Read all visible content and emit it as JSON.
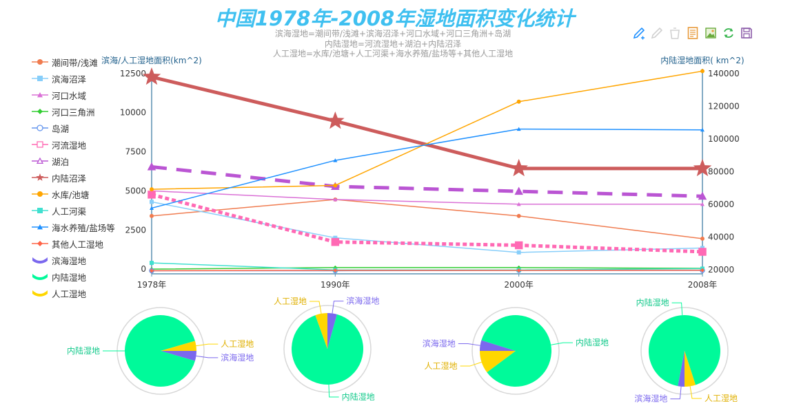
{
  "title": "中国1978年-2008年湿地面积变化统计",
  "subtitle_lines": [
    "滨海湿地=潮间带/浅滩+滨海沼泽+河口水域+河口三角洲+岛湖",
    "内陆湿地=河流湿地+湖泊+内陆沼泽",
    "人工湿地=水库/池塘+人工河渠+海水养殖/盐场等+其他人工湿地"
  ],
  "toolbox": [
    {
      "name": "mark",
      "icon": "pen-icon",
      "color": "#1e90ff"
    },
    {
      "name": "mark-undo",
      "icon": "pen-undo-icon",
      "color": "#d7d7d7"
    },
    {
      "name": "mark-clear",
      "icon": "eraser-icon",
      "color": "#d7d7d7"
    },
    {
      "name": "data-view",
      "icon": "document-icon",
      "color": "#e89b3c"
    },
    {
      "name": "save-image",
      "icon": "image-icon",
      "color": "#6aaa3c"
    },
    {
      "name": "restore",
      "icon": "refresh-icon",
      "color": "#32b34a"
    },
    {
      "name": "save",
      "icon": "floppy-icon",
      "color": "#8a5aa8"
    }
  ],
  "chart_data": [
    {
      "type": "line",
      "categories": [
        "1978年",
        "1990年",
        "2000年",
        "2008年"
      ],
      "y_left_label": "滨海/人工湿地面积(km^2)",
      "y_right_label": "内陆湿地面积( km^2)",
      "y_left_ticks": [
        0,
        2500,
        5000,
        7500,
        10000,
        12500
      ],
      "y_right_ticks": [
        20000,
        40000,
        60000,
        80000,
        100000,
        120000,
        140000
      ],
      "ylim_left": [
        -300,
        12800
      ],
      "ylim_right": [
        17500,
        143000
      ],
      "series": [
        {
          "name": "潮间带/浅滩",
          "axis": "left",
          "color": "#f07b4f",
          "symbol": "circle",
          "width": 1.5,
          "values": [
            3400,
            4450,
            3400,
            1950
          ]
        },
        {
          "name": "滨海沼泽",
          "axis": "left",
          "color": "#87cefa",
          "symbol": "square",
          "width": 1.5,
          "values": [
            4300,
            2000,
            1070,
            1350
          ]
        },
        {
          "name": "河口水域",
          "axis": "left",
          "color": "#da70d6",
          "symbol": "triangle",
          "width": 1.5,
          "values": [
            5000,
            4450,
            4150,
            4150
          ]
        },
        {
          "name": "河口三角洲",
          "axis": "left",
          "color": "#32cd32",
          "symbol": "diamond",
          "width": 1.5,
          "values": [
            0,
            100,
            100,
            50
          ]
        },
        {
          "name": "岛湖",
          "axis": "left",
          "color": "#6495ed",
          "symbol": "emptyCircle",
          "width": 1.5,
          "values": [
            -100,
            -100,
            -80,
            -80
          ]
        },
        {
          "name": "河流湿地",
          "axis": "right",
          "color": "#ff69b4",
          "symbol": "emptyRect",
          "width": 5,
          "dash": "dotted",
          "values": [
            66000,
            37000,
            35000,
            31000
          ]
        },
        {
          "name": "湖泊",
          "axis": "right",
          "color": "#ba55d3",
          "symbol": "emptyTriangle",
          "width": 5,
          "dash": "dashed",
          "values": [
            83000,
            71000,
            68000,
            65000
          ]
        },
        {
          "name": "内陆沼泽",
          "axis": "right",
          "color": "#cd5c5c",
          "symbol": "star",
          "width": 5,
          "values": [
            138000,
            111000,
            82000,
            82000
          ]
        },
        {
          "name": "水库/池塘",
          "axis": "left",
          "color": "#ffa500",
          "symbol": "circle",
          "width": 1.5,
          "values": [
            5100,
            5350,
            10700,
            12650
          ]
        },
        {
          "name": "人工河渠",
          "axis": "left",
          "color": "#40e0d0",
          "symbol": "square",
          "width": 1.5,
          "values": [
            400,
            -50,
            -50,
            30
          ]
        },
        {
          "name": "海水养殖/盐场等",
          "axis": "left",
          "color": "#1e90ff",
          "symbol": "triangle",
          "width": 1.5,
          "values": [
            3900,
            6950,
            8950,
            8900
          ]
        },
        {
          "name": "其他人工湿地",
          "axis": "left",
          "color": "#ff6347",
          "symbol": "diamond",
          "width": 1.5,
          "values": [
            -100,
            -80,
            -80,
            -70
          ]
        }
      ]
    },
    {
      "type": "pie",
      "category_names": [
        "滨海湿地",
        "内陆湿地",
        "人工湿地"
      ],
      "colors": [
        "#7b68ee",
        "#00fa9a",
        "#ffd700"
      ],
      "pies": [
        {
          "year": "1978年",
          "values": [
            4.5,
            91.0,
            4.5
          ],
          "label_layout": "right"
        },
        {
          "year": "1990年",
          "values": [
            4.3,
            90.2,
            5.5
          ],
          "label_layout": "top"
        },
        {
          "year": "2000年",
          "values": [
            4.8,
            85.0,
            10.2
          ],
          "label_layout": "left"
        },
        {
          "year": "2008年",
          "values": [
            3.0,
            92.0,
            5.0
          ],
          "label_layout": "bottom"
        }
      ]
    }
  ],
  "legend_extra": [
    {
      "name": "滨海湿地",
      "color": "#7b68ee"
    },
    {
      "name": "内陆湿地",
      "color": "#00fa9a"
    },
    {
      "name": "人工湿地",
      "color": "#ffd700"
    }
  ]
}
